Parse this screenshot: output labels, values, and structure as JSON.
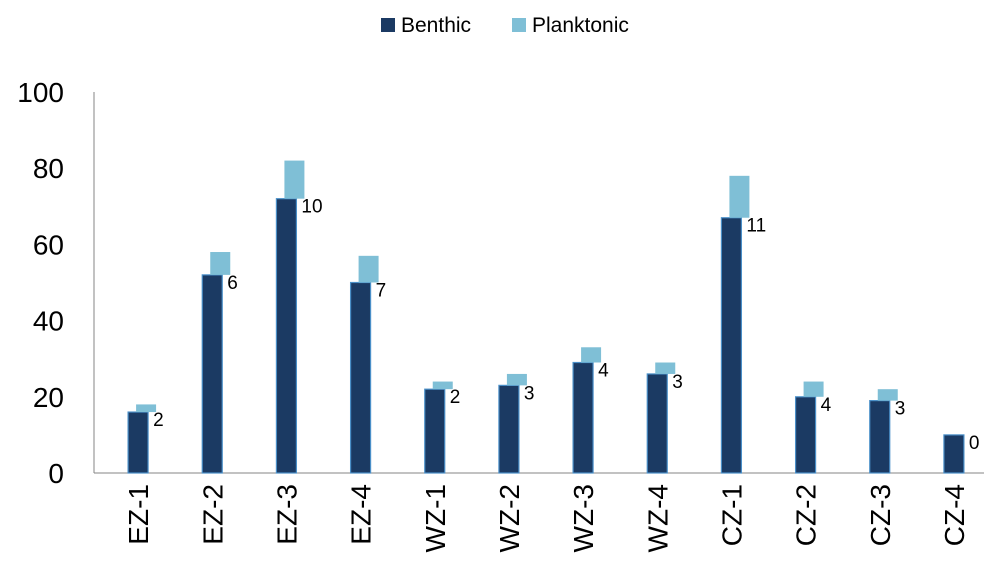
{
  "chart_data": {
    "type": "bar",
    "stacked": true,
    "categories": [
      "EZ-1",
      "EZ-2",
      "EZ-3",
      "EZ-4",
      "WZ-1",
      "WZ-2",
      "WZ-3",
      "WZ-4",
      "CZ-1",
      "CZ-2",
      "CZ-3",
      "CZ-4"
    ],
    "series": [
      {
        "name": "Benthic",
        "values": [
          16,
          52,
          72,
          50,
          22,
          23,
          29,
          26,
          67,
          20,
          19,
          10
        ],
        "color": "#1b3a63"
      },
      {
        "name": "Planktonic",
        "values": [
          2,
          6,
          10,
          7,
          2,
          3,
          4,
          3,
          11,
          4,
          3,
          0
        ],
        "color": "#7fbfd6"
      }
    ],
    "data_labels": [
      "2",
      "6",
      "10",
      "7",
      "2",
      "3",
      "4",
      "3",
      "11",
      "4",
      "3",
      "0"
    ],
    "ylim": [
      0,
      100
    ],
    "y_ticks": [
      "0",
      "20",
      "40",
      "60",
      "80",
      "100"
    ],
    "legend": "top",
    "grid": false,
    "x_tick_rotation": -90,
    "title": "",
    "xlabel": "",
    "ylabel": ""
  }
}
